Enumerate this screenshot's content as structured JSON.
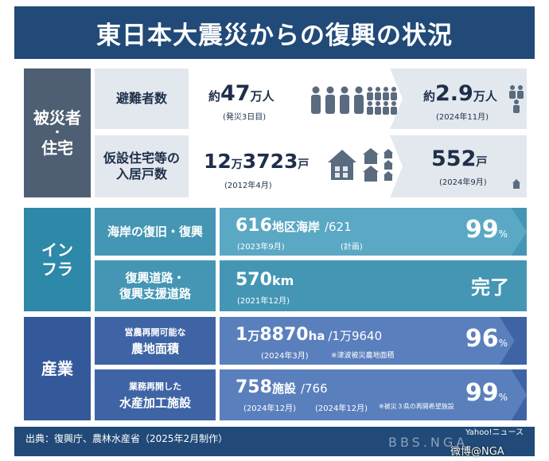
{
  "title": "東日本大震災からの復興の状況",
  "categories": {
    "housing": [
      "被災者",
      "・",
      "住宅"
    ],
    "infra": [
      "イン",
      "フラ"
    ],
    "industry": "産業"
  },
  "evacuees": {
    "label": "避難者数",
    "before_prefix": "約",
    "before_value": "47",
    "before_unit": "万人",
    "before_note": "(発災3日目)",
    "after_prefix": "約",
    "after_value": "2.9",
    "after_unit": "万人",
    "after_note": "(2024年11月)"
  },
  "temp_housing": {
    "label_line1": "仮設住宅等の",
    "label_line2": "入居戸数",
    "before_value_a": "12",
    "before_unit_a": "万",
    "before_value_b": "3723",
    "before_unit_b": "戸",
    "before_note": "(2012年4月)",
    "after_value": "552",
    "after_unit": "戸",
    "after_note": "(2024年9月)"
  },
  "coast": {
    "label": "海岸の復旧・復興",
    "value": "616",
    "unit": "地区海岸",
    "total": "/621",
    "value_note": "(2023年9月)",
    "total_note": "(計画)",
    "percent": "99",
    "percent_sign": "%"
  },
  "roads": {
    "label_line1": "復興道路・",
    "label_line2": "復興支援道路",
    "value": "570",
    "unit": "km",
    "note": "(2021年12月)",
    "status": "完了"
  },
  "farmland": {
    "label_line1": "営農再開可能な",
    "label_line2": "農地面積",
    "value_a": "1",
    "unit_a": "万",
    "value_b": "8870",
    "unit_b": "ha",
    "total": "/1万9640",
    "value_note": "(2024年3月)",
    "total_note": "※津波被災農地面積",
    "percent": "96",
    "percent_sign": "%"
  },
  "fishery": {
    "label_line1": "業務再開した",
    "label_line2": "水産加工施設",
    "value": "758",
    "unit": "施設",
    "total": "/766",
    "value_note": "(2024年12月)",
    "total_note1": "(2024年12月)",
    "total_note2": "※被災３県の再開希望施設",
    "percent": "99",
    "percent_sign": "%"
  },
  "footer": {
    "source": "出典：復興庁、農林水産省（2025年2月制作）",
    "credit_line1": "Yahoo!ニュース",
    "credit_line2": "",
    "watermark": "BBS.NGA",
    "weibo": "微博@NGA"
  },
  "colors": {
    "frame": "#214a78",
    "housing": "#4f5f73",
    "infra": "#2e88a8",
    "industry": "#33599a"
  }
}
